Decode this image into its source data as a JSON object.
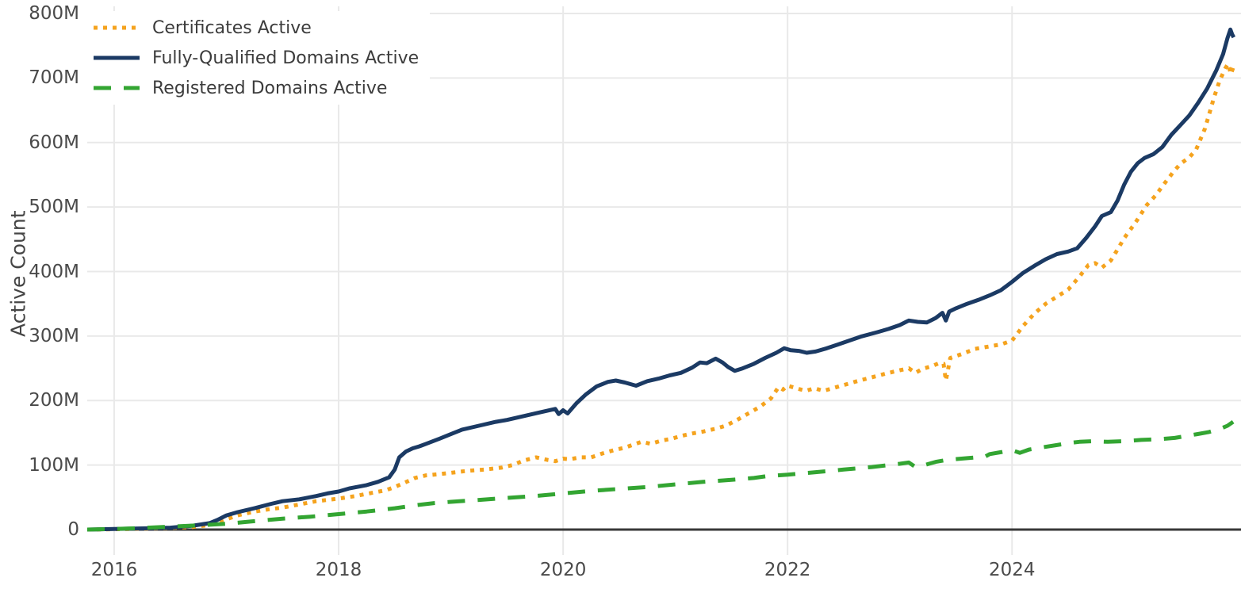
{
  "chart_data": {
    "type": "line",
    "title": "",
    "xlabel": "",
    "ylabel": "Active Count",
    "y_unit": "millions",
    "grid": true,
    "legend_position": "top-left",
    "axis_color": "#383838",
    "grid_color": "#e9e9e9",
    "text_color": "#4a4a4a",
    "x_axis": {
      "range": [
        2015.76,
        2026.04
      ],
      "ticks": [
        {
          "value": 2016,
          "label": "2016"
        },
        {
          "value": 2018,
          "label": "2018"
        },
        {
          "value": 2020,
          "label": "2020"
        },
        {
          "value": 2022,
          "label": "2022"
        },
        {
          "value": 2024,
          "label": "2024"
        }
      ]
    },
    "y_axis": {
      "range": [
        0,
        800
      ],
      "ticks": [
        {
          "value": 0,
          "label": "0"
        },
        {
          "value": 100,
          "label": "100M"
        },
        {
          "value": 200,
          "label": "200M"
        },
        {
          "value": 300,
          "label": "300M"
        },
        {
          "value": 400,
          "label": "400M"
        },
        {
          "value": 500,
          "label": "500M"
        },
        {
          "value": 600,
          "label": "600M"
        },
        {
          "value": 700,
          "label": "700M"
        },
        {
          "value": 800,
          "label": "800M"
        }
      ]
    },
    "series": [
      {
        "id": "certificates",
        "name": "Certificates Active",
        "color": "#F5A31E",
        "style": "dotted",
        "dash": "5 7",
        "width": 5,
        "points": [
          [
            2015.76,
            0
          ],
          [
            2016.0,
            0.5
          ],
          [
            2016.3,
            1.5
          ],
          [
            2016.5,
            2.5
          ],
          [
            2016.7,
            4
          ],
          [
            2016.85,
            7
          ],
          [
            2017.0,
            16
          ],
          [
            2017.1,
            22
          ],
          [
            2017.25,
            28
          ],
          [
            2017.4,
            32
          ],
          [
            2017.5,
            34
          ],
          [
            2017.65,
            39
          ],
          [
            2017.8,
            44
          ],
          [
            2017.9,
            46
          ],
          [
            2018.0,
            48
          ],
          [
            2018.15,
            52
          ],
          [
            2018.3,
            57
          ],
          [
            2018.42,
            61
          ],
          [
            2018.5,
            66
          ],
          [
            2018.58,
            72
          ],
          [
            2018.68,
            80
          ],
          [
            2018.78,
            84
          ],
          [
            2018.9,
            86
          ],
          [
            2019.0,
            88
          ],
          [
            2019.15,
            91
          ],
          [
            2019.3,
            93
          ],
          [
            2019.45,
            96
          ],
          [
            2019.55,
            100
          ],
          [
            2019.65,
            107
          ],
          [
            2019.76,
            112
          ],
          [
            2019.86,
            108
          ],
          [
            2019.93,
            106
          ],
          [
            2020.0,
            110
          ],
          [
            2020.06,
            109
          ],
          [
            2020.15,
            112
          ],
          [
            2020.25,
            112
          ],
          [
            2020.35,
            118
          ],
          [
            2020.45,
            123
          ],
          [
            2020.55,
            127
          ],
          [
            2020.63,
            132
          ],
          [
            2020.7,
            136
          ],
          [
            2020.78,
            133
          ],
          [
            2020.88,
            138
          ],
          [
            2020.97,
            141
          ],
          [
            2021.05,
            145
          ],
          [
            2021.15,
            149
          ],
          [
            2021.25,
            152
          ],
          [
            2021.35,
            156
          ],
          [
            2021.45,
            161
          ],
          [
            2021.55,
            170
          ],
          [
            2021.65,
            180
          ],
          [
            2021.75,
            190
          ],
          [
            2021.85,
            203
          ],
          [
            2021.92,
            221
          ],
          [
            2021.96,
            217
          ],
          [
            2022.0,
            223
          ],
          [
            2022.08,
            219
          ],
          [
            2022.16,
            215
          ],
          [
            2022.24,
            219
          ],
          [
            2022.32,
            215
          ],
          [
            2022.42,
            220
          ],
          [
            2022.5,
            224
          ],
          [
            2022.62,
            230
          ],
          [
            2022.75,
            236
          ],
          [
            2022.88,
            242
          ],
          [
            2023.0,
            247
          ],
          [
            2023.08,
            250
          ],
          [
            2023.14,
            243
          ],
          [
            2023.2,
            249
          ],
          [
            2023.28,
            253
          ],
          [
            2023.35,
            258
          ],
          [
            2023.39,
            257
          ],
          [
            2023.41,
            231
          ],
          [
            2023.45,
            266
          ],
          [
            2023.55,
            272
          ],
          [
            2023.67,
            280
          ],
          [
            2023.8,
            284
          ],
          [
            2023.9,
            287
          ],
          [
            2024.0,
            293
          ],
          [
            2024.1,
            316
          ],
          [
            2024.2,
            335
          ],
          [
            2024.3,
            350
          ],
          [
            2024.4,
            361
          ],
          [
            2024.5,
            372
          ],
          [
            2024.6,
            392
          ],
          [
            2024.68,
            410
          ],
          [
            2024.74,
            413
          ],
          [
            2024.8,
            406
          ],
          [
            2024.88,
            417
          ],
          [
            2024.95,
            437
          ],
          [
            2025.0,
            452
          ],
          [
            2025.1,
            476
          ],
          [
            2025.2,
            503
          ],
          [
            2025.28,
            518
          ],
          [
            2025.36,
            537
          ],
          [
            2025.44,
            555
          ],
          [
            2025.5,
            567
          ],
          [
            2025.58,
            577
          ],
          [
            2025.64,
            589
          ],
          [
            2025.72,
            622
          ],
          [
            2025.8,
            670
          ],
          [
            2025.85,
            696
          ],
          [
            2025.9,
            715
          ],
          [
            2025.925,
            722
          ],
          [
            2025.95,
            706
          ],
          [
            2025.97,
            716
          ]
        ]
      },
      {
        "id": "fqdn",
        "name": "Fully-Qualified Domains Active",
        "color": "#1B3A64",
        "style": "solid",
        "dash": "",
        "width": 5,
        "points": [
          [
            2015.76,
            0
          ],
          [
            2016.0,
            1
          ],
          [
            2016.3,
            2
          ],
          [
            2016.5,
            3
          ],
          [
            2016.7,
            6
          ],
          [
            2016.85,
            10
          ],
          [
            2016.92,
            15
          ],
          [
            2017.0,
            22
          ],
          [
            2017.1,
            27
          ],
          [
            2017.25,
            33
          ],
          [
            2017.4,
            40
          ],
          [
            2017.5,
            44
          ],
          [
            2017.65,
            47
          ],
          [
            2017.8,
            52
          ],
          [
            2017.9,
            56
          ],
          [
            2018.0,
            59
          ],
          [
            2018.1,
            64
          ],
          [
            2018.25,
            69
          ],
          [
            2018.35,
            74
          ],
          [
            2018.45,
            81
          ],
          [
            2018.5,
            93
          ],
          [
            2018.54,
            112
          ],
          [
            2018.6,
            121
          ],
          [
            2018.66,
            126
          ],
          [
            2018.72,
            129
          ],
          [
            2018.78,
            133
          ],
          [
            2018.9,
            141
          ],
          [
            2019.0,
            148
          ],
          [
            2019.1,
            155
          ],
          [
            2019.25,
            161
          ],
          [
            2019.4,
            167
          ],
          [
            2019.5,
            170
          ],
          [
            2019.65,
            176
          ],
          [
            2019.8,
            182
          ],
          [
            2019.93,
            187
          ],
          [
            2019.96,
            179
          ],
          [
            2020.0,
            185
          ],
          [
            2020.04,
            180
          ],
          [
            2020.12,
            196
          ],
          [
            2020.2,
            209
          ],
          [
            2020.3,
            222
          ],
          [
            2020.4,
            229
          ],
          [
            2020.47,
            231
          ],
          [
            2020.55,
            228
          ],
          [
            2020.65,
            223
          ],
          [
            2020.75,
            230
          ],
          [
            2020.85,
            234
          ],
          [
            2020.95,
            239
          ],
          [
            2021.05,
            243
          ],
          [
            2021.15,
            251
          ],
          [
            2021.22,
            259
          ],
          [
            2021.28,
            258
          ],
          [
            2021.36,
            265
          ],
          [
            2021.42,
            259
          ],
          [
            2021.47,
            252
          ],
          [
            2021.53,
            246
          ],
          [
            2021.6,
            250
          ],
          [
            2021.7,
            257
          ],
          [
            2021.8,
            266
          ],
          [
            2021.9,
            274
          ],
          [
            2021.97,
            281
          ],
          [
            2022.03,
            278
          ],
          [
            2022.1,
            277
          ],
          [
            2022.17,
            274
          ],
          [
            2022.25,
            276
          ],
          [
            2022.35,
            281
          ],
          [
            2022.45,
            287
          ],
          [
            2022.55,
            293
          ],
          [
            2022.65,
            299
          ],
          [
            2022.8,
            306
          ],
          [
            2022.9,
            311
          ],
          [
            2023.0,
            317
          ],
          [
            2023.08,
            324
          ],
          [
            2023.16,
            322
          ],
          [
            2023.24,
            321
          ],
          [
            2023.32,
            328
          ],
          [
            2023.38,
            336
          ],
          [
            2023.41,
            324
          ],
          [
            2023.44,
            338
          ],
          [
            2023.5,
            343
          ],
          [
            2023.6,
            350
          ],
          [
            2023.7,
            356
          ],
          [
            2023.8,
            363
          ],
          [
            2023.9,
            371
          ],
          [
            2024.0,
            384
          ],
          [
            2024.1,
            398
          ],
          [
            2024.2,
            409
          ],
          [
            2024.3,
            419
          ],
          [
            2024.4,
            427
          ],
          [
            2024.5,
            431
          ],
          [
            2024.58,
            436
          ],
          [
            2024.66,
            452
          ],
          [
            2024.74,
            470
          ],
          [
            2024.8,
            486
          ],
          [
            2024.88,
            492
          ],
          [
            2024.94,
            510
          ],
          [
            2025.0,
            535
          ],
          [
            2025.06,
            555
          ],
          [
            2025.12,
            568
          ],
          [
            2025.18,
            576
          ],
          [
            2025.26,
            582
          ],
          [
            2025.34,
            593
          ],
          [
            2025.42,
            612
          ],
          [
            2025.5,
            627
          ],
          [
            2025.58,
            642
          ],
          [
            2025.66,
            662
          ],
          [
            2025.74,
            684
          ],
          [
            2025.82,
            712
          ],
          [
            2025.88,
            737
          ],
          [
            2025.92,
            762
          ],
          [
            2025.945,
            775
          ],
          [
            2025.96,
            768
          ],
          [
            2025.975,
            763
          ]
        ]
      },
      {
        "id": "registered",
        "name": "Registered Domains Active",
        "color": "#33A532",
        "style": "dashed",
        "dash": "22 16",
        "width": 5,
        "points": [
          [
            2015.76,
            0
          ],
          [
            2016.0,
            1
          ],
          [
            2016.25,
            2.5
          ],
          [
            2016.5,
            4.5
          ],
          [
            2016.75,
            6.5
          ],
          [
            2017.0,
            9
          ],
          [
            2017.25,
            13
          ],
          [
            2017.5,
            17
          ],
          [
            2017.75,
            20
          ],
          [
            2018.0,
            24
          ],
          [
            2018.25,
            28
          ],
          [
            2018.5,
            33
          ],
          [
            2018.7,
            38
          ],
          [
            2018.85,
            41
          ],
          [
            2019.0,
            43
          ],
          [
            2019.25,
            46
          ],
          [
            2019.5,
            49
          ],
          [
            2019.75,
            52
          ],
          [
            2020.0,
            56
          ],
          [
            2020.25,
            60
          ],
          [
            2020.5,
            63
          ],
          [
            2020.75,
            66
          ],
          [
            2021.0,
            70
          ],
          [
            2021.25,
            74
          ],
          [
            2021.5,
            77
          ],
          [
            2021.7,
            80
          ],
          [
            2021.82,
            83
          ],
          [
            2022.0,
            85
          ],
          [
            2022.25,
            89
          ],
          [
            2022.5,
            93
          ],
          [
            2022.75,
            97
          ],
          [
            2023.0,
            102
          ],
          [
            2023.08,
            104
          ],
          [
            2023.14,
            97
          ],
          [
            2023.22,
            100
          ],
          [
            2023.32,
            105
          ],
          [
            2023.42,
            108
          ],
          [
            2023.55,
            110
          ],
          [
            2023.68,
            112
          ],
          [
            2023.76,
            113
          ],
          [
            2023.8,
            117
          ],
          [
            2023.9,
            120
          ],
          [
            2024.0,
            123
          ],
          [
            2024.07,
            119
          ],
          [
            2024.15,
            124
          ],
          [
            2024.25,
            127
          ],
          [
            2024.4,
            131
          ],
          [
            2024.5,
            134
          ],
          [
            2024.6,
            136
          ],
          [
            2024.72,
            137
          ],
          [
            2024.85,
            136
          ],
          [
            2025.0,
            137
          ],
          [
            2025.15,
            139
          ],
          [
            2025.3,
            140
          ],
          [
            2025.45,
            142
          ],
          [
            2025.55,
            145
          ],
          [
            2025.65,
            148
          ],
          [
            2025.75,
            151
          ],
          [
            2025.85,
            156
          ],
          [
            2025.92,
            161
          ],
          [
            2025.97,
            167
          ]
        ]
      }
    ]
  }
}
